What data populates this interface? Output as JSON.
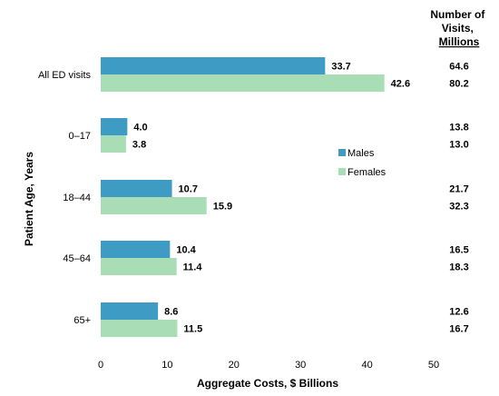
{
  "chart_data": {
    "type": "bar",
    "orientation": "horizontal",
    "categories": [
      "All ED visits",
      "0–17",
      "18–44",
      "45–64",
      "65+"
    ],
    "series": [
      {
        "name": "Males",
        "values": [
          33.7,
          4.0,
          10.7,
          10.4,
          8.6
        ],
        "color": "#3E9CC4"
      },
      {
        "name": "Females",
        "values": [
          42.6,
          3.8,
          15.9,
          11.4,
          11.5
        ],
        "color": "#A8DDB5"
      }
    ],
    "value_labels": [
      [
        "33.7",
        "4.0",
        "10.7",
        "10.4",
        "8.6"
      ],
      [
        "42.6",
        "3.8",
        "15.9",
        "11.4",
        "11.5"
      ]
    ],
    "xlabel": "Aggregate Costs,  $ Billions",
    "ylabel": "Patient Age, Years",
    "xlim": [
      0,
      50
    ],
    "xticks": [
      "0",
      "10",
      "20",
      "30",
      "40",
      "50"
    ],
    "grid": false,
    "legend_position": "right",
    "visits_header": [
      "Number of",
      "Visits,",
      "Millions"
    ],
    "visits": [
      [
        "64.6",
        "80.2"
      ],
      [
        "13.8",
        "13.0"
      ],
      [
        "21.7",
        "32.3"
      ],
      [
        "16.5",
        "18.3"
      ],
      [
        "12.6",
        "16.7"
      ]
    ]
  }
}
